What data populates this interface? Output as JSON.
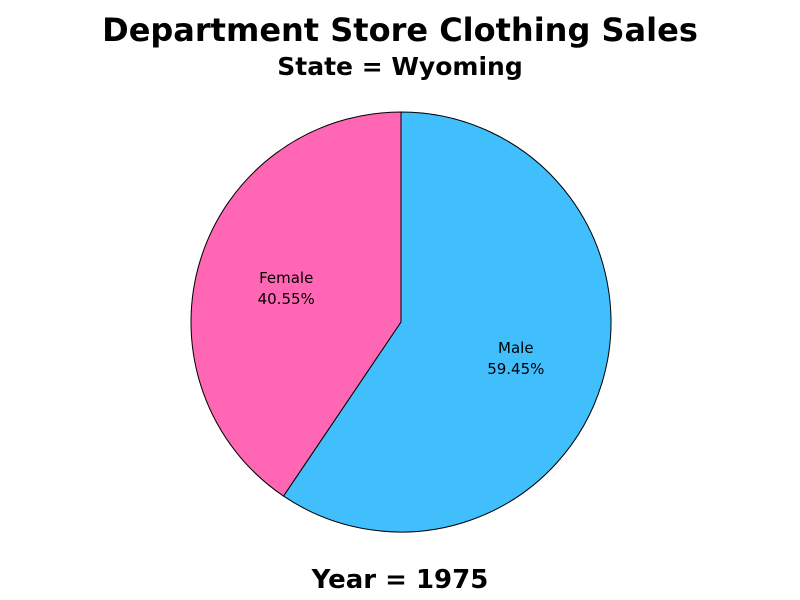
{
  "chart_data": {
    "type": "pie",
    "title": "Department Store Clothing Sales",
    "subtitle": "State = Wyoming",
    "footnote": "Year = 1975",
    "slices": [
      {
        "label": "Male",
        "value": 59.45,
        "value_label": "59.45%",
        "color": "#40BFFC"
      },
      {
        "label": "Female",
        "value": 40.55,
        "value_label": "40.55%",
        "color": "#FF66B3"
      }
    ],
    "start_angle_deg": 0,
    "direction": "clockwise",
    "outline_color": "#000000",
    "legend": "none"
  }
}
